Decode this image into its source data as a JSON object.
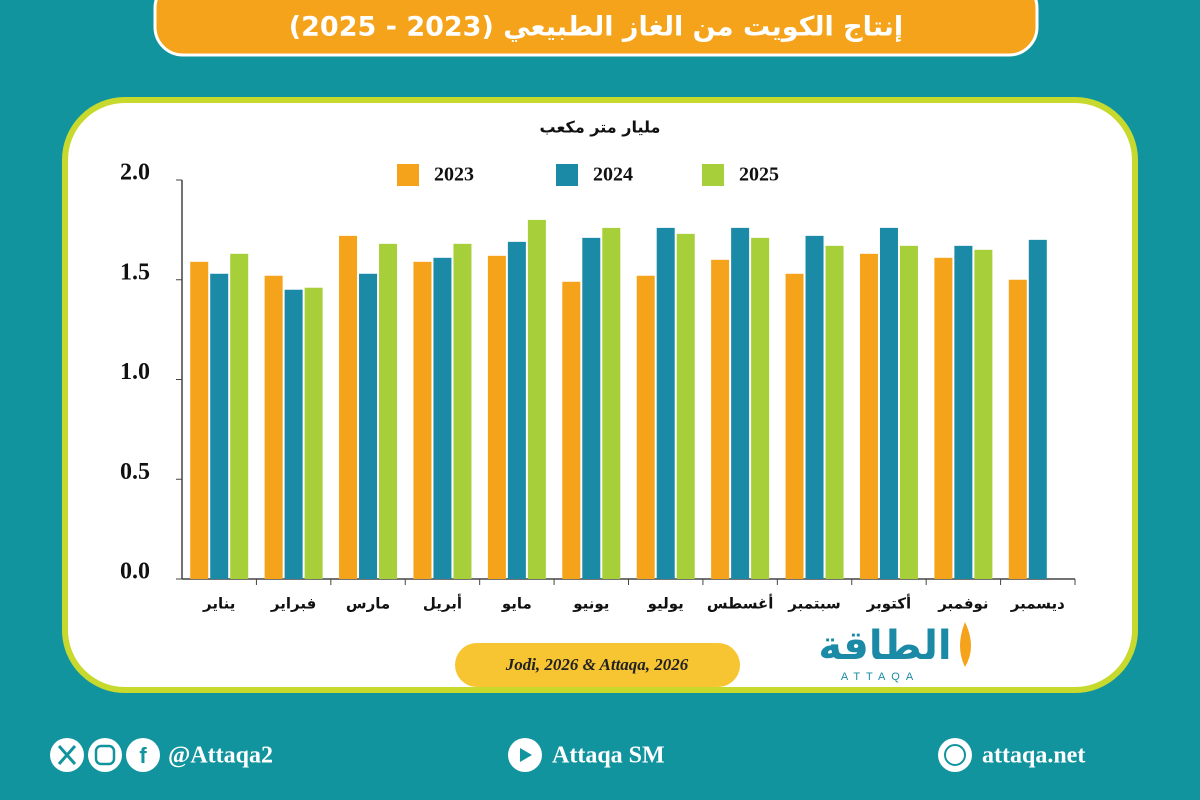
{
  "chart_data": {
    "type": "bar",
    "title": "إنتاج الكويت من الغاز الطبيعي (2023 - 2025)",
    "y_axis_label": "مليار متر مكعب",
    "source": "Jodi, 2026 & Attaqa, 2026",
    "categories": [
      "يناير",
      "فبراير",
      "مارس",
      "أبريل",
      "مايو",
      "يونيو",
      "يوليو",
      "أغسطس",
      "سبتمبر",
      "أكتوبر",
      "نوفمبر",
      "ديسمبر"
    ],
    "series": [
      {
        "name": "2023",
        "color": "#f5a31a",
        "values": [
          1.59,
          1.52,
          1.72,
          1.59,
          1.62,
          1.49,
          1.52,
          1.6,
          1.53,
          1.63,
          1.61,
          1.5
        ]
      },
      {
        "name": "2024",
        "color": "#1b8aa6",
        "values": [
          1.53,
          1.45,
          1.53,
          1.61,
          1.69,
          1.71,
          1.76,
          1.76,
          1.72,
          1.76,
          1.67,
          1.7
        ]
      },
      {
        "name": "2025",
        "color": "#a6cf3a",
        "values": [
          1.63,
          1.46,
          1.68,
          1.68,
          1.8,
          1.76,
          1.73,
          1.71,
          1.67,
          1.67,
          1.65,
          null
        ]
      }
    ],
    "ylim": [
      0,
      2
    ],
    "yticks": [
      {
        "value": 0,
        "label": "0.0"
      },
      0.5,
      {
        "value": 1,
        "label": "1.0"
      },
      1.5,
      {
        "value": 2,
        "label": "2.0"
      }
    ],
    "grid": false
  },
  "logo": {
    "arabic": "الطاقة",
    "latin": "ATTAQA"
  },
  "footer": {
    "handle": "@Attaqa2",
    "youtube": "Attaqa SM",
    "website": "attaqa.net"
  }
}
